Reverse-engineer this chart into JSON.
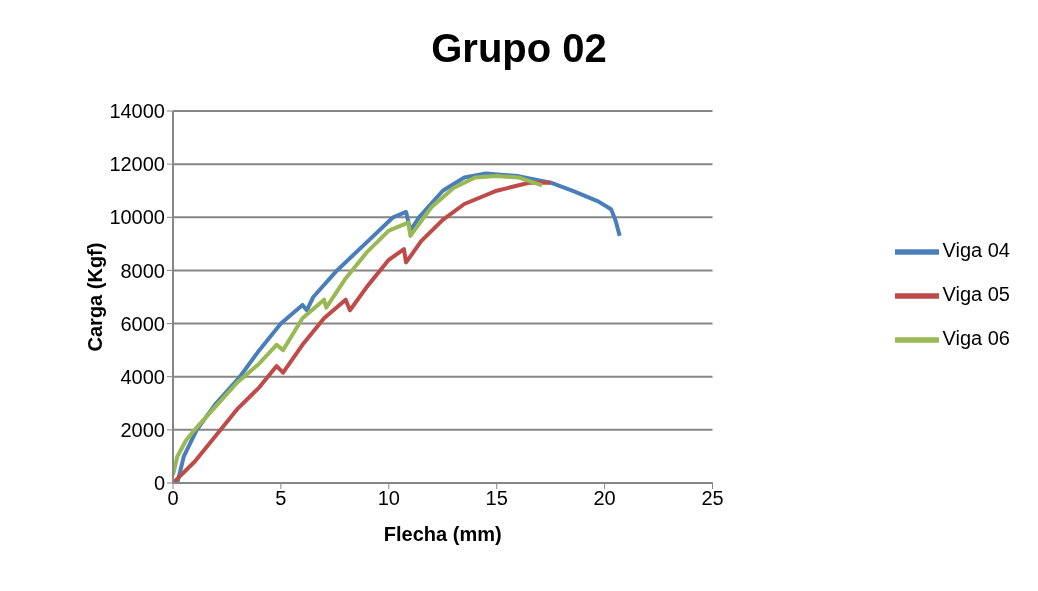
{
  "chart_data": {
    "type": "line",
    "title": "Grupo 02",
    "xlabel": "Flecha (mm)",
    "ylabel": "Carga (Kgf)",
    "xlim": [
      0,
      25
    ],
    "xticks": [
      0,
      5,
      10,
      15,
      20,
      25
    ],
    "ylim": [
      0,
      14000
    ],
    "yticks": [
      0,
      2000,
      4000,
      6000,
      8000,
      10000,
      12000,
      14000
    ],
    "grid": "y",
    "legend": "right",
    "marker": "none",
    "line_style": "solid",
    "series": [
      {
        "name": "Viga 04",
        "color": "#4a7ebb",
        "x": [
          0.2,
          0.5,
          0.8,
          1.1,
          2.0,
          3.1,
          4.0,
          5.0,
          6.0,
          6.2,
          6.5,
          7.6,
          8.9,
          10.2,
          10.8,
          11.0,
          11.4,
          12.5,
          13.5,
          14.5,
          16.0,
          17.5,
          18.5,
          19.7,
          20.3,
          20.5,
          20.7
        ],
        "values": [
          0,
          1000,
          1500,
          2000,
          3000,
          4000,
          5000,
          6000,
          6700,
          6500,
          7000,
          8000,
          9000,
          10000,
          10200,
          9500,
          10000,
          11000,
          11500,
          11650,
          11550,
          11300,
          11000,
          10600,
          10300,
          9900,
          9300
        ]
      },
      {
        "name": "Viga 05",
        "color": "#be4b48",
        "x": [
          0,
          1,
          2,
          3,
          4,
          4.8,
          5.1,
          6,
          7,
          8,
          8.2,
          9,
          10,
          10.7,
          10.8,
          11.5,
          12.5,
          13.5,
          15,
          16.5,
          17.5
        ],
        "values": [
          0,
          800,
          1800,
          2800,
          3600,
          4400,
          4150,
          5200,
          6200,
          6900,
          6500,
          7400,
          8400,
          8800,
          8300,
          9100,
          9900,
          10500,
          11000,
          11300,
          11300
        ]
      },
      {
        "name": "Viga 06",
        "color": "#98b954",
        "x": [
          0,
          0.2,
          0.6,
          1,
          2,
          3,
          4,
          4.8,
          5.1,
          6,
          7,
          7.1,
          8,
          9,
          10,
          10.9,
          11,
          12,
          13,
          14,
          15,
          16,
          17.1
        ],
        "values": [
          300,
          1000,
          1600,
          2000,
          2900,
          3800,
          4500,
          5200,
          5000,
          6200,
          6900,
          6600,
          7700,
          8700,
          9500,
          9800,
          9300,
          10400,
          11100,
          11500,
          11550,
          11500,
          11200
        ]
      }
    ]
  }
}
